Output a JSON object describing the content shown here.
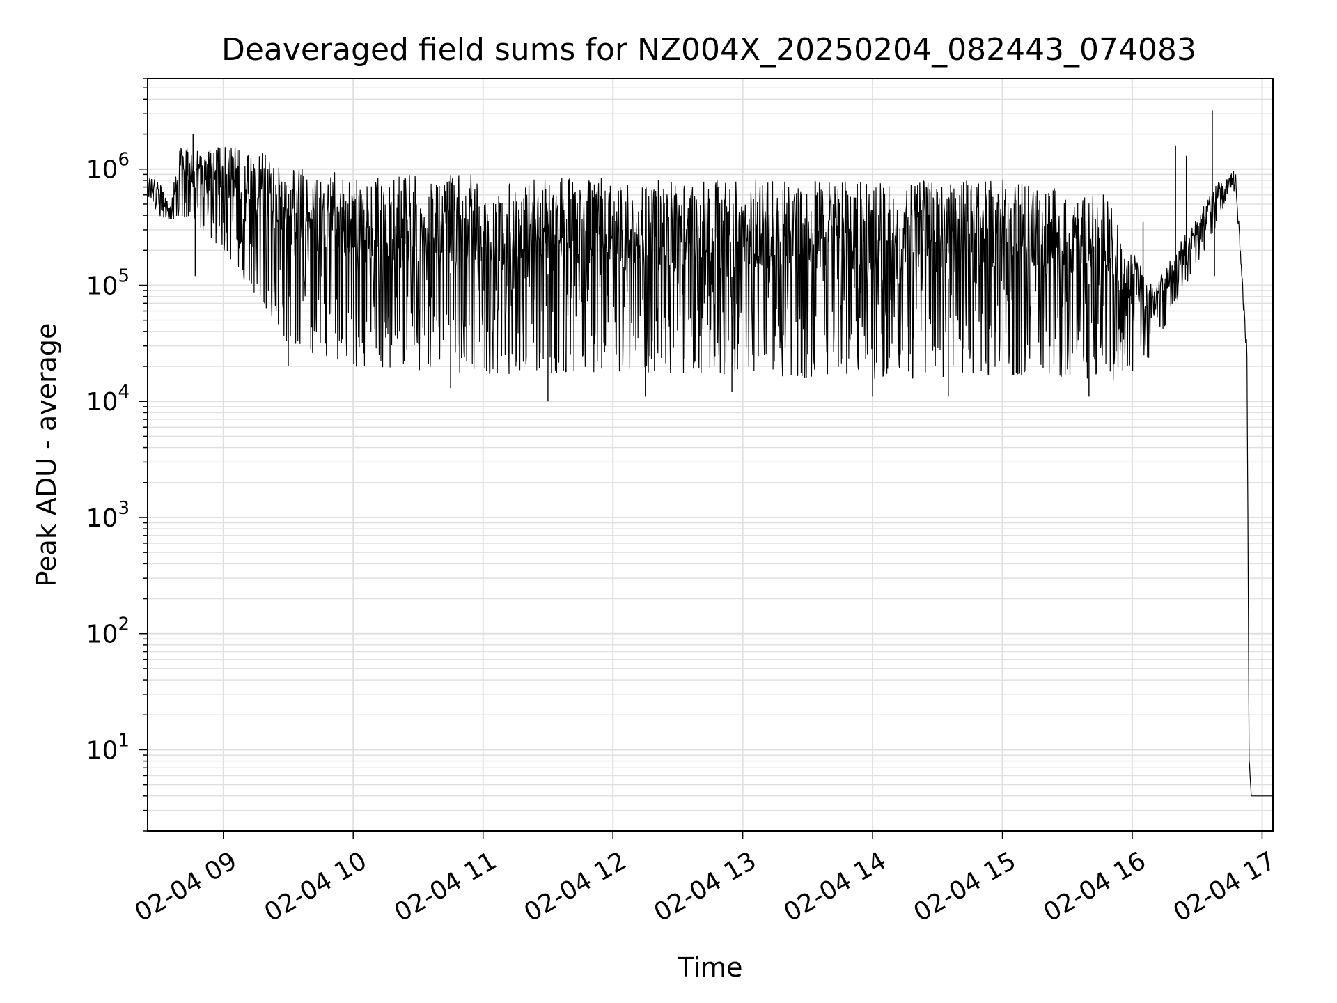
{
  "chart_data": {
    "type": "line",
    "title": "Deaveraged field sums for NZ004X_20250204_082443_074083",
    "xlabel": "Time",
    "ylabel": "Peak ADU - average",
    "y_scale": "log",
    "ylim": [
      2,
      6000000
    ],
    "xlim": [
      "2025-02-04 08:25",
      "2025-02-04 17:05"
    ],
    "grid": true,
    "line_color": "#000000",
    "grid_color": "#e0e0e0",
    "x_ticks": [
      {
        "value": "2025-02-04 09:00",
        "label": "02-04 09"
      },
      {
        "value": "2025-02-04 10:00",
        "label": "02-04 10"
      },
      {
        "value": "2025-02-04 11:00",
        "label": "02-04 11"
      },
      {
        "value": "2025-02-04 12:00",
        "label": "02-04 12"
      },
      {
        "value": "2025-02-04 13:00",
        "label": "02-04 13"
      },
      {
        "value": "2025-02-04 14:00",
        "label": "02-04 14"
      },
      {
        "value": "2025-02-04 15:00",
        "label": "02-04 15"
      },
      {
        "value": "2025-02-04 16:00",
        "label": "02-04 16"
      },
      {
        "value": "2025-02-04 17:00",
        "label": "02-04 17"
      }
    ],
    "y_ticks": [
      {
        "value": 10,
        "base": "10",
        "exp": "1"
      },
      {
        "value": 100,
        "base": "10",
        "exp": "2"
      },
      {
        "value": 1000,
        "base": "10",
        "exp": "3"
      },
      {
        "value": 10000,
        "base": "10",
        "exp": "4"
      },
      {
        "value": 100000,
        "base": "10",
        "exp": "5"
      },
      {
        "value": 1000000,
        "base": "10",
        "exp": "6"
      }
    ],
    "series": [
      {
        "envelope_upper": [
          [
            "2025-02-04 08:25",
            900000
          ],
          [
            "2025-02-04 08:30",
            800000
          ],
          [
            "2025-02-04 08:35",
            500000
          ],
          [
            "2025-02-04 08:40",
            1600000
          ],
          [
            "2025-02-04 08:50",
            1400000
          ],
          [
            "2025-02-04 09:00",
            1600000
          ],
          [
            "2025-02-04 09:15",
            1500000
          ],
          [
            "2025-02-04 09:30",
            1100000
          ],
          [
            "2025-02-04 10:00",
            950000
          ],
          [
            "2025-02-04 11:00",
            900000
          ],
          [
            "2025-02-04 12:00",
            850000
          ],
          [
            "2025-02-04 13:00",
            800000
          ],
          [
            "2025-02-04 14:00",
            800000
          ],
          [
            "2025-02-04 15:00",
            800000
          ],
          [
            "2025-02-04 15:50",
            650000
          ],
          [
            "2025-02-04 16:00",
            200000
          ],
          [
            "2025-02-04 16:10",
            100000
          ],
          [
            "2025-02-04 16:20",
            200000
          ],
          [
            "2025-02-04 16:30",
            400000
          ],
          [
            "2025-02-04 16:40",
            800000
          ],
          [
            "2025-02-04 16:45",
            1100000
          ],
          [
            "2025-02-04 16:48",
            900000
          ],
          [
            "2025-02-04 16:50",
            200000
          ],
          [
            "2025-02-04 16:53",
            30000
          ],
          [
            "2025-02-04 16:54",
            10
          ],
          [
            "2025-02-04 16:55",
            4
          ],
          [
            "2025-02-04 17:05",
            4
          ]
        ],
        "envelope_lower": [
          [
            "2025-02-04 08:25",
            600000
          ],
          [
            "2025-02-04 08:30",
            400000
          ],
          [
            "2025-02-04 08:35",
            350000
          ],
          [
            "2025-02-04 08:40",
            400000
          ],
          [
            "2025-02-04 08:50",
            300000
          ],
          [
            "2025-02-04 09:00",
            200000
          ],
          [
            "2025-02-04 09:15",
            80000
          ],
          [
            "2025-02-04 09:30",
            30000
          ],
          [
            "2025-02-04 10:00",
            20000
          ],
          [
            "2025-02-04 11:00",
            17000
          ],
          [
            "2025-02-04 12:00",
            18000
          ],
          [
            "2025-02-04 13:00",
            17000
          ],
          [
            "2025-02-04 14:00",
            15000
          ],
          [
            "2025-02-04 15:00",
            17000
          ],
          [
            "2025-02-04 15:50",
            15000
          ],
          [
            "2025-02-04 16:00",
            18000
          ],
          [
            "2025-02-04 16:10",
            25000
          ],
          [
            "2025-02-04 16:20",
            70000
          ],
          [
            "2025-02-04 16:30",
            150000
          ],
          [
            "2025-02-04 16:40",
            350000
          ],
          [
            "2025-02-04 16:45",
            700000
          ],
          [
            "2025-02-04 16:48",
            600000
          ],
          [
            "2025-02-04 16:50",
            150000
          ],
          [
            "2025-02-04 16:53",
            20000
          ],
          [
            "2025-02-04 16:54",
            8
          ],
          [
            "2025-02-04 16:55",
            4
          ],
          [
            "2025-02-04 17:05",
            4
          ]
        ],
        "spikes": [
          [
            "2025-02-04 08:46",
            2000000
          ],
          [
            "2025-02-04 08:47",
            120000
          ],
          [
            "2025-02-04 09:30",
            20000
          ],
          [
            "2025-02-04 10:45",
            13000
          ],
          [
            "2025-02-04 11:30",
            10000
          ],
          [
            "2025-02-04 12:15",
            11000
          ],
          [
            "2025-02-04 12:55",
            12000
          ],
          [
            "2025-02-04 14:00",
            11000
          ],
          [
            "2025-02-04 14:35",
            11000
          ],
          [
            "2025-02-04 15:40",
            11000
          ],
          [
            "2025-02-04 16:05",
            350000
          ],
          [
            "2025-02-04 16:20",
            1600000
          ],
          [
            "2025-02-04 16:25",
            1300000
          ],
          [
            "2025-02-04 16:37",
            3200000
          ],
          [
            "2025-02-04 16:38",
            120000
          ]
        ]
      }
    ]
  }
}
